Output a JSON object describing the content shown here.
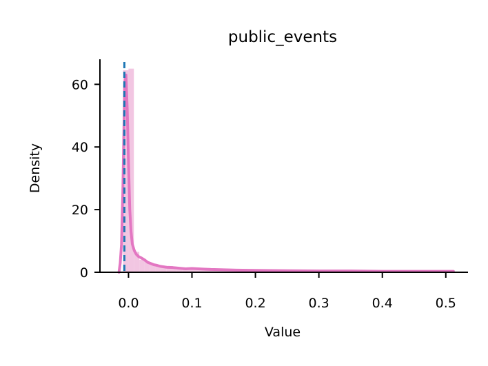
{
  "chart_data": {
    "type": "area",
    "title": "public_events",
    "xlabel": "Value",
    "ylabel": "Density",
    "xlim": [
      -0.045,
      0.535
    ],
    "ylim": [
      0,
      68
    ],
    "xticks": [
      0.0,
      0.1,
      0.2,
      0.3,
      0.4,
      0.5
    ],
    "xtick_labels": [
      "0.0",
      "0.1",
      "0.2",
      "0.3",
      "0.4",
      "0.5"
    ],
    "yticks": [
      0,
      20,
      40,
      60
    ],
    "ytick_labels": [
      "0",
      "20",
      "40",
      "60"
    ],
    "grid": false,
    "histogram": {
      "bin_edges": [
        -0.0085,
        0.0,
        0.0085,
        0.017,
        0.0255,
        0.034,
        0.0425,
        0.051,
        0.0595,
        0.068,
        0.0765,
        0.085,
        0.1,
        0.12,
        0.15,
        0.2,
        0.3,
        0.4,
        0.512
      ],
      "densities": [
        64.5,
        65.0,
        6.5,
        4.0,
        3.2,
        2.6,
        2.2,
        1.9,
        1.6,
        1.4,
        1.3,
        1.2,
        1.0,
        0.9,
        0.7,
        0.5,
        0.3,
        0.3
      ],
      "color": "#f2c6e2"
    },
    "series": [
      {
        "type": "kde",
        "color": "#e377c2",
        "x": [
          -0.015,
          -0.013,
          -0.011,
          -0.009,
          -0.007,
          -0.006,
          -0.004,
          -0.002,
          0.0,
          0.002,
          0.004,
          0.006,
          0.009,
          0.012,
          0.016,
          0.02,
          0.025,
          0.03,
          0.035,
          0.04,
          0.045,
          0.05,
          0.06,
          0.07,
          0.08,
          0.09,
          0.1,
          0.11,
          0.12,
          0.13,
          0.15,
          0.17,
          0.2,
          0.25,
          0.3,
          0.35,
          0.4,
          0.45,
          0.512
        ],
        "y": [
          0,
          3,
          9,
          25,
          48,
          60,
          63,
          52,
          35,
          20,
          13,
          9,
          7,
          5.8,
          5.0,
          4.6,
          4.0,
          3.2,
          2.8,
          2.4,
          2.2,
          1.9,
          1.6,
          1.5,
          1.3,
          1.1,
          1.2,
          1.1,
          1.0,
          0.9,
          0.8,
          0.7,
          0.6,
          0.5,
          0.4,
          0.4,
          0.3,
          0.3,
          0.3
        ]
      }
    ],
    "reference_line": {
      "x": -0.0065,
      "style": "dashed",
      "color": "#1f77b4"
    }
  }
}
